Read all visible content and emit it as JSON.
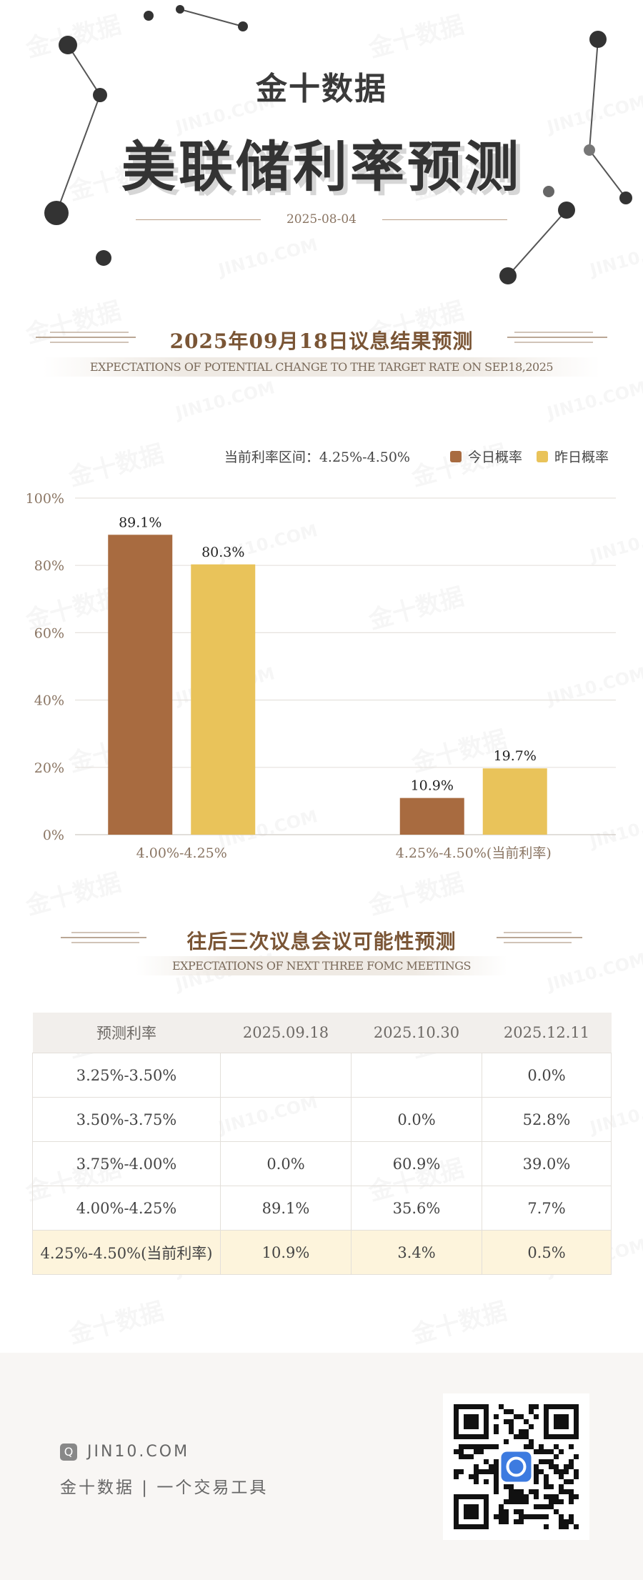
{
  "header": {
    "brand": "金十数据",
    "title": "美联储利率预测",
    "date": "2025-08-04"
  },
  "section1": {
    "title": "2025年09月18日议息结果预测",
    "subtitle": "EXPECTATIONS OF POTENTIAL CHANGE TO THE TARGET RATE ON SEP.18,2025"
  },
  "legend": {
    "current_range": "当前利率区间：4.25%-4.50%",
    "today": "今日概率",
    "yesterday": "昨日概率"
  },
  "colors": {
    "today": "#a86b40",
    "yesterday": "#e9c35a",
    "accent": "#7a5535"
  },
  "chart_data": {
    "type": "bar",
    "categories": [
      "4.00%-4.25%",
      "4.25%-4.50%(当前利率)"
    ],
    "series": [
      {
        "name": "今日概率",
        "values": [
          89.1,
          10.9
        ],
        "labels": [
          "89.1%",
          "10.9%"
        ]
      },
      {
        "name": "昨日概率",
        "values": [
          80.3,
          19.7
        ],
        "labels": [
          "80.3%",
          "19.7%"
        ]
      }
    ],
    "yticks": [
      "0%",
      "20%",
      "40%",
      "60%",
      "80%",
      "100%"
    ],
    "ylim": [
      0,
      100
    ],
    "grid": true,
    "legend": "top-right"
  },
  "section2": {
    "title": "往后三次议息会议可能性预测",
    "subtitle": "EXPECTATIONS OF NEXT THREE FOMC MEETINGS"
  },
  "table": {
    "headers": [
      "预测利率",
      "2025.09.18",
      "2025.10.30",
      "2025.12.11"
    ],
    "rows": [
      [
        "3.25%-3.50%",
        "",
        "",
        "0.0%"
      ],
      [
        "3.50%-3.75%",
        "",
        "0.0%",
        "52.8%"
      ],
      [
        "3.75%-4.00%",
        "0.0%",
        "60.9%",
        "39.0%"
      ],
      [
        "4.00%-4.25%",
        "89.1%",
        "35.6%",
        "7.7%"
      ],
      [
        "4.25%-4.50%(当前利率)",
        "10.9%",
        "3.4%",
        "0.5%"
      ]
    ]
  },
  "footer": {
    "site": "JIN10.COM",
    "tagline": "金十数据 | 一个交易工具",
    "logo_letter": "Q",
    "watermark": "JIN10.COM"
  }
}
